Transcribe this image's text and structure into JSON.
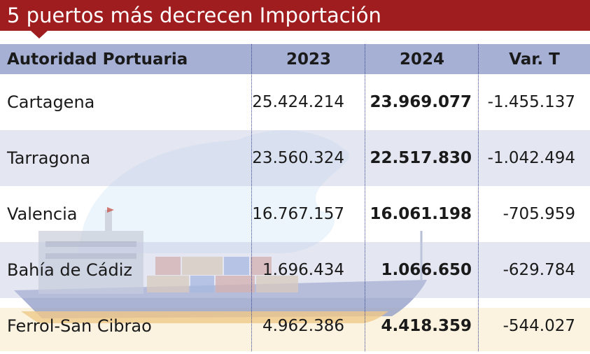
{
  "title": "5 puertos más decrecen Importación",
  "colors": {
    "title_bg": "#a01d1f",
    "header_bg": "#96a2cd",
    "stripe": "#c4cae2",
    "divider": "#33418c"
  },
  "table": {
    "headers": [
      "Autoridad Portuaria",
      "2023",
      "2024",
      "Var. T"
    ],
    "rows": [
      {
        "name": "Cartagena",
        "y2023": "25.424.214",
        "y2024": "23.969.077",
        "var": "-1.455.137"
      },
      {
        "name": "Tarragona",
        "y2023": "23.560.324",
        "y2024": "22.517.830",
        "var": "-1.042.494"
      },
      {
        "name": "Valencia",
        "y2023": "16.767.157",
        "y2024": "16.061.198",
        "var": "-705.959"
      },
      {
        "name": "Bahía de Cádiz",
        "y2023": "1.696.434",
        "y2024": "1.066.650",
        "var": "-629.784"
      },
      {
        "name": "Ferrol-San Cibrao",
        "y2023": "4.962.386",
        "y2024": "4.418.359",
        "var": "-544.027"
      }
    ]
  }
}
